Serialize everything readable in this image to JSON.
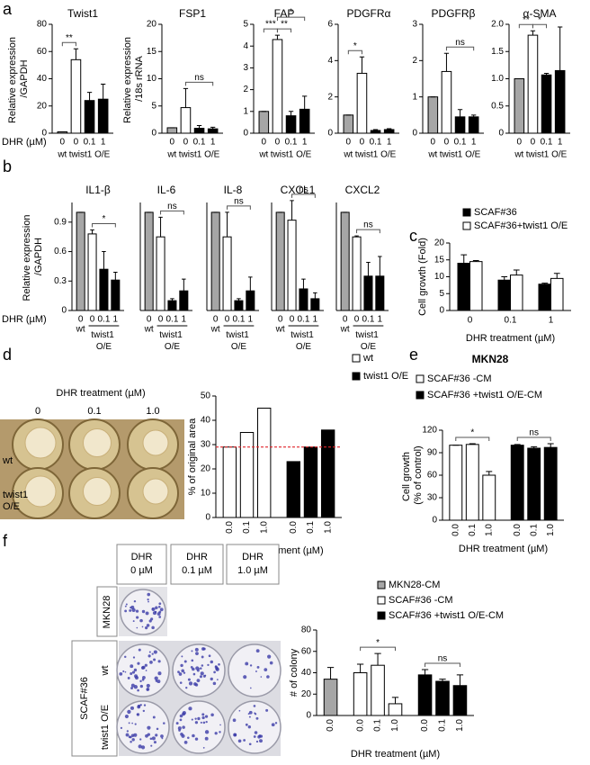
{
  "chart_data": [
    {
      "type": "bar",
      "title": "Twist1",
      "ylabel": "Relative expression /GAPDH",
      "xlabel": "DHR (µM)",
      "categories": [
        "0",
        "0",
        "0.1",
        "1"
      ],
      "values": [
        1,
        54,
        24,
        25
      ],
      "errors": [
        0,
        8,
        6,
        11
      ],
      "colors": [
        "#a6a6a6",
        "#ffffff",
        "#000000",
        "#000000"
      ],
      "group_labels": [
        "wt",
        "twist1 O/E"
      ],
      "ylim": [
        0,
        80
      ],
      "yticks": [
        0,
        20,
        40,
        60,
        80
      ],
      "annotations": [
        {
          "text": "**",
          "bars": [
            0,
            1
          ]
        }
      ]
    },
    {
      "type": "bar",
      "title": "FSP1",
      "ylabel": "Relative expression /18s rRNA",
      "categories": [
        "0",
        "0",
        "0.1",
        "1"
      ],
      "values": [
        1,
        4.7,
        0.9,
        0.8
      ],
      "errors": [
        0,
        3.5,
        0.5,
        0.3
      ],
      "colors": [
        "#a6a6a6",
        "#ffffff",
        "#000000",
        "#000000"
      ],
      "group_labels": [
        "wt",
        "twist1 O/E"
      ],
      "ylim": [
        0,
        20
      ],
      "yticks": [
        0,
        5,
        10,
        15,
        20
      ],
      "annotations": [
        {
          "text": "ns",
          "bars": [
            1,
            3
          ]
        }
      ]
    },
    {
      "type": "bar",
      "title": "FAP",
      "categories": [
        "0",
        "0",
        "0.1",
        "1"
      ],
      "values": [
        1,
        4.3,
        0.8,
        1.1
      ],
      "errors": [
        0,
        0.2,
        0.2,
        0.6
      ],
      "colors": [
        "#a6a6a6",
        "#ffffff",
        "#000000",
        "#000000"
      ],
      "group_labels": [
        "wt",
        "twist1 O/E"
      ],
      "ylim": [
        0,
        5
      ],
      "yticks": [
        0,
        1,
        2,
        3,
        4,
        5
      ],
      "annotations": [
        {
          "text": "***",
          "bars": [
            0,
            1
          ]
        },
        {
          "text": "**",
          "bars": [
            1,
            2
          ]
        },
        {
          "text": "*",
          "bars": [
            1,
            3
          ]
        }
      ]
    },
    {
      "type": "bar",
      "title": "PDGFRα",
      "categories": [
        "0",
        "0",
        "0.1",
        "1"
      ],
      "values": [
        1,
        3.3,
        0.15,
        0.2
      ],
      "errors": [
        0,
        0.9,
        0.05,
        0.05
      ],
      "colors": [
        "#a6a6a6",
        "#ffffff",
        "#000000",
        "#000000"
      ],
      "group_labels": [
        "wt",
        "twist1 O/E"
      ],
      "ylim": [
        0,
        6
      ],
      "yticks": [
        0,
        2,
        4,
        6
      ],
      "annotations": [
        {
          "text": "*",
          "bars": [
            0,
            1
          ]
        }
      ]
    },
    {
      "type": "bar",
      "title": "PDGFRβ",
      "categories": [
        "0",
        "0",
        "0.1",
        "1"
      ],
      "values": [
        1,
        1.7,
        0.45,
        0.45
      ],
      "errors": [
        0,
        0.5,
        0.2,
        0.05
      ],
      "colors": [
        "#a6a6a6",
        "#ffffff",
        "#000000",
        "#000000"
      ],
      "group_labels": [
        "wt",
        "twist1 O/E"
      ],
      "ylim": [
        0,
        3
      ],
      "yticks": [
        0,
        1,
        2,
        3
      ],
      "annotations": [
        {
          "text": "ns",
          "bars": [
            1,
            3
          ]
        }
      ]
    },
    {
      "type": "bar",
      "title": "α-SMA",
      "categories": [
        "0",
        "0",
        "0.1",
        "1"
      ],
      "values": [
        1,
        1.8,
        1.07,
        1.15
      ],
      "errors": [
        0,
        0.08,
        0.03,
        0.8
      ],
      "colors": [
        "#a6a6a6",
        "#ffffff",
        "#000000",
        "#000000"
      ],
      "group_labels": [
        "wt",
        "twist1 O/E"
      ],
      "ylim": [
        0,
        2
      ],
      "yticks": [
        0,
        0.5,
        {
          "value": 1,
          "label": "1.0"
        },
        1.5,
        {
          "value": 2,
          "label": "2.0"
        }
      ],
      "annotations": [
        {
          "text": "**",
          "bars": [
            0,
            1
          ]
        },
        {
          "text": "*",
          "bars": [
            1,
            2
          ]
        }
      ]
    },
    {
      "type": "bar",
      "title": "IL1-β",
      "ylabel": "Relative expression /GAPDH",
      "xlabel": "DHR (µM)",
      "categories": [
        "0",
        "0",
        "0.1",
        "1"
      ],
      "values": [
        1,
        0.78,
        0.42,
        0.31
      ],
      "errors": [
        0,
        0.04,
        0.18,
        0.08
      ],
      "colors": [
        "#a6a6a6",
        "#ffffff",
        "#000000",
        "#000000"
      ],
      "group_labels": [
        "wt",
        "twist1 O/E"
      ],
      "ylim": [
        0,
        1.1
      ],
      "yticks": [
        0,
        0.3,
        0.6,
        0.9
      ],
      "annotations": [
        {
          "text": "*",
          "bars": [
            1,
            3
          ]
        }
      ]
    },
    {
      "type": "bar",
      "title": "IL-6",
      "categories": [
        "0",
        "0",
        "0.1",
        "1"
      ],
      "values": [
        1,
        0.75,
        0.1,
        0.2
      ],
      "errors": [
        0,
        0.2,
        0.02,
        0.12
      ],
      "colors": [
        "#a6a6a6",
        "#ffffff",
        "#000000",
        "#000000"
      ],
      "group_labels": [
        "wt",
        "twist1 O/E"
      ],
      "ylim": [
        0,
        1.1
      ],
      "annotations": [
        {
          "text": "ns",
          "bars": [
            1,
            3
          ]
        }
      ]
    },
    {
      "type": "bar",
      "title": "IL-8",
      "categories": [
        "0",
        "0",
        "0.1",
        "1"
      ],
      "values": [
        1,
        0.75,
        0.1,
        0.2
      ],
      "errors": [
        0,
        0.25,
        0.02,
        0.14
      ],
      "colors": [
        "#a6a6a6",
        "#ffffff",
        "#000000",
        "#000000"
      ],
      "group_labels": [
        "wt",
        "twist1 O/E"
      ],
      "ylim": [
        0,
        1.1
      ],
      "annotations": [
        {
          "text": "ns",
          "bars": [
            1,
            3
          ]
        }
      ]
    },
    {
      "type": "bar",
      "title": "CXCL1",
      "categories": [
        "0",
        "0",
        "0.1",
        "1"
      ],
      "values": [
        1,
        0.92,
        0.22,
        0.12
      ],
      "errors": [
        0,
        0.2,
        0.1,
        0.06
      ],
      "colors": [
        "#a6a6a6",
        "#ffffff",
        "#000000",
        "#000000"
      ],
      "group_labels": [
        "wt",
        "twist1 O/E"
      ],
      "ylim": [
        0,
        1.1
      ],
      "annotations": [
        {
          "text": "ns",
          "bars": [
            1,
            3
          ]
        }
      ]
    },
    {
      "type": "bar",
      "title": "CXCL2",
      "categories": [
        "0",
        "0",
        "0.1",
        "1"
      ],
      "values": [
        1,
        0.75,
        0.35,
        0.35
      ],
      "errors": [
        0,
        0.01,
        0.14,
        0.2
      ],
      "colors": [
        "#a6a6a6",
        "#ffffff",
        "#000000",
        "#000000"
      ],
      "group_labels": [
        "wt",
        "twist1 O/E"
      ],
      "ylim": [
        0,
        1.1
      ],
      "annotations": [
        {
          "text": "ns",
          "bars": [
            1,
            3
          ]
        }
      ]
    },
    {
      "type": "bar",
      "group_by": "category",
      "ylabel": "Cell growth (Fold)",
      "xlabel": "DHR treatment (µM)",
      "legend": true,
      "categories": [
        "0",
        "0.1",
        "1"
      ],
      "series": [
        {
          "name": "SCAF#36",
          "color": "#000000",
          "values": [
            14,
            9,
            7.8
          ],
          "errors": [
            2.5,
            1,
            0.3
          ]
        },
        {
          "name": "SCAF#36+twist1 O/E",
          "color": "#ffffff",
          "values": [
            14.5,
            10.5,
            9.5
          ],
          "errors": [
            0.3,
            1.5,
            1.5
          ]
        }
      ],
      "ylim": [
        0,
        20
      ],
      "yticks": [
        0,
        5,
        10,
        15,
        20
      ]
    },
    {
      "type": "bar",
      "group_by": "series",
      "ylabel": "% of original area",
      "xlabel": "DHR treatment (µM)",
      "legend": true,
      "series": [
        {
          "name": "wt",
          "color": "#ffffff",
          "categories": [
            "0.0",
            "0.1",
            "1.0"
          ],
          "values": [
            29,
            35,
            45
          ]
        },
        {
          "name": "twist1 O/E",
          "color": "#000000",
          "categories": [
            "0.0",
            "0.1",
            "1.0"
          ],
          "values": [
            23,
            29,
            36
          ]
        }
      ],
      "ylim": [
        0,
        50
      ],
      "yticks": [
        0,
        10,
        20,
        30,
        40,
        50
      ],
      "reference_line": 29,
      "reference_color": "#e0262b"
    },
    {
      "type": "bar",
      "group_by": "series",
      "title": "MKN28",
      "ylabel": "Cell growth (% of control)",
      "xlabel": "DHR treatment (µM)",
      "legend": true,
      "series": [
        {
          "name": "SCAF#36 -CM",
          "color": "#ffffff",
          "categories": [
            "0.0",
            "0.1",
            "1.0"
          ],
          "values": [
            100,
            101,
            60
          ],
          "errors": [
            0,
            1,
            5
          ]
        },
        {
          "name": "SCAF#36 +twist1 O/E-CM",
          "color": "#000000",
          "categories": [
            "0.0",
            "0.1",
            "1.0"
          ],
          "values": [
            100,
            96,
            97
          ],
          "errors": [
            1,
            2,
            5
          ]
        }
      ],
      "ylim": [
        0,
        120
      ],
      "yticks": [
        0,
        30,
        60,
        90,
        120
      ],
      "annotations": [
        {
          "text": "*",
          "series": 0,
          "bars": [
            0,
            2
          ]
        },
        {
          "text": "ns",
          "series": 1,
          "bars": [
            0,
            2
          ]
        }
      ]
    },
    {
      "type": "bar",
      "group_by": "series",
      "ylabel": "# of colony",
      "xlabel": "DHR treatment (µM)",
      "legend": true,
      "series": [
        {
          "name": "MKN28-CM",
          "color": "#a6a6a6",
          "categories": [
            "0.0"
          ],
          "values": [
            34
          ],
          "errors": [
            11
          ]
        },
        {
          "name": "SCAF#36 -CM",
          "color": "#ffffff",
          "categories": [
            "0.0",
            "0.1",
            "1.0"
          ],
          "values": [
            40,
            47,
            11
          ],
          "errors": [
            8,
            11,
            6
          ]
        },
        {
          "name": "SCAF#36 +twist1 O/E-CM",
          "color": "#000000",
          "categories": [
            "0.0",
            "0.1",
            "1.0"
          ],
          "values": [
            38,
            32,
            28
          ],
          "errors": [
            5,
            2,
            10
          ]
        }
      ],
      "ylim": [
        0,
        80
      ],
      "yticks": [
        0,
        20,
        40,
        60,
        80
      ],
      "annotations": [
        {
          "text": "*",
          "series": 1,
          "bars": [
            0,
            2
          ]
        },
        {
          "text": "ns",
          "series": 2,
          "bars": [
            0,
            2
          ]
        }
      ]
    }
  ],
  "figure": {
    "panel_labels": [
      "a",
      "b",
      "c",
      "d",
      "e",
      "f"
    ],
    "d_image": {
      "title": "DHR treatment (µM)",
      "columns": [
        "0",
        "0.1",
        "1.0"
      ],
      "rows": [
        "wt",
        "twist1 O/E"
      ]
    },
    "f_image": {
      "columns": [
        [
          "DHR",
          "0 µM"
        ],
        [
          "DHR",
          "0.1 µM"
        ],
        [
          "DHR",
          "1.0 µM"
        ]
      ],
      "mkn28": "MKN28",
      "scaf": "SCAF#36",
      "wt": "wt",
      "oe": "twist1 O/E"
    }
  }
}
